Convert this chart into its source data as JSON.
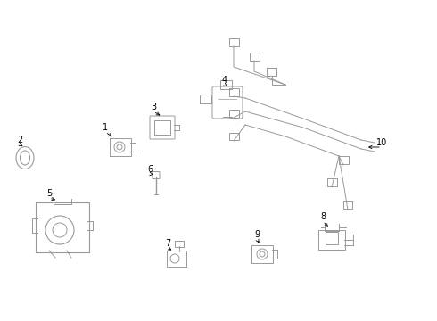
{
  "background_color": "#ffffff",
  "line_color": "#999999",
  "label_color": "#000000",
  "figsize": [
    4.9,
    3.6
  ],
  "dpi": 100
}
